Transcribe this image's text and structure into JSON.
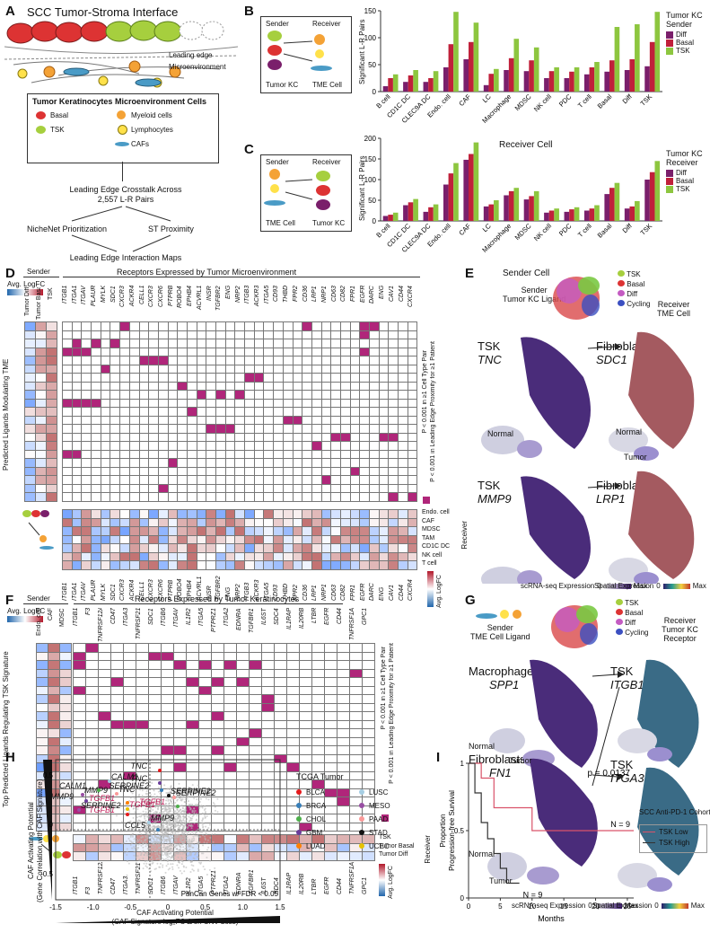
{
  "panelA": {
    "letter": "A",
    "title": "SCC Tumor-Stroma Interface",
    "leading_edge": "Leading edge",
    "microenvironment": "Microenvironment",
    "tk_header": "Tumor Keratinocytes",
    "me_header": "Microenvironment Cells",
    "basal": "Basal",
    "tsk": "TSK",
    "myeloid": "Myeloid cells",
    "lymph": "Lymphocytes",
    "cafs": "CAFs",
    "crosstalk1": "Leading Edge Crosstalk Across",
    "crosstalk2": "2,557 L-R Pairs",
    "nichenet": "NicheNet Prioritization",
    "st": "ST Proximity",
    "maps": "Leading Edge Interaction Maps"
  },
  "panelB": {
    "letter": "B",
    "sender": "Sender",
    "receiver": "Receiver",
    "sender_cell": "Tumor KC",
    "receiver_cell": "TME Cell",
    "legend_title1": "Tumor KC",
    "legend_title2": "Sender",
    "x_title": "Receiver Cell",
    "y_title": "Significant L-R Pairs"
  },
  "panelC": {
    "letter": "C",
    "sender": "Sender",
    "receiver": "Receiver",
    "sender_cell": "TME Cell",
    "receiver_cell": "Tumor KC",
    "legend_title1": "Tumor KC",
    "legend_title2": "Receiver",
    "x_title": "Sender Cell",
    "y_title": "Significant L-R Pairs"
  },
  "chart_data": [
    {
      "type": "bar",
      "categories": [
        "B cell",
        "CD1C DC",
        "CLEC9A DC",
        "Endo. cell",
        "CAF",
        "LC",
        "Macrophage",
        "MDSC",
        "NK cell",
        "PDC",
        "T cell",
        "Basal",
        "Diff",
        "TSK"
      ],
      "series": [
        {
          "name": "Diff",
          "values": [
            10,
            18,
            18,
            45,
            60,
            12,
            40,
            38,
            25,
            25,
            32,
            37,
            40,
            47
          ]
        },
        {
          "name": "Basal",
          "values": [
            25,
            30,
            25,
            88,
            92,
            33,
            62,
            58,
            38,
            37,
            45,
            58,
            60,
            92
          ]
        },
        {
          "name": "TSK",
          "values": [
            32,
            40,
            38,
            148,
            128,
            42,
            98,
            82,
            45,
            45,
            55,
            120,
            125,
            148
          ]
        }
      ],
      "ylim": [
        0,
        150
      ],
      "yticks": [
        0,
        50,
        100,
        150
      ],
      "colors": [
        "#7a1f6b",
        "#c0203a",
        "#8dc63f"
      ]
    },
    {
      "type": "bar",
      "categories": [
        "B cell",
        "CD1C DC",
        "CLEC9A DC",
        "Endo. cell",
        "CAF",
        "LC",
        "Macrophage",
        "MDSC",
        "NK cell",
        "PDC",
        "T cell",
        "Basal",
        "Diff",
        "TSK"
      ],
      "series": [
        {
          "name": "Diff",
          "values": [
            12,
            38,
            22,
            88,
            148,
            35,
            62,
            52,
            20,
            22,
            25,
            65,
            30,
            100
          ]
        },
        {
          "name": "Basal",
          "values": [
            15,
            45,
            33,
            115,
            162,
            40,
            72,
            60,
            25,
            28,
            30,
            80,
            35,
            118
          ]
        },
        {
          "name": "TSK",
          "values": [
            20,
            53,
            40,
            140,
            190,
            50,
            80,
            72,
            30,
            33,
            38,
            92,
            48,
            145
          ]
        }
      ],
      "ylim": [
        0,
        200
      ],
      "yticks": [
        0,
        50,
        100,
        150,
        200
      ],
      "colors": [
        "#7a1f6b",
        "#c0203a",
        "#8dc63f"
      ]
    },
    {
      "type": "line",
      "title": "",
      "xlabel": "Months",
      "ylabel": "Proportion Progression-free Survival",
      "x_ticks": [
        0,
        5,
        10,
        15,
        20,
        25
      ],
      "y_ticks": [
        0,
        0.5,
        1
      ],
      "series": [
        {
          "name": "TSK Low",
          "color": "#d9536a",
          "x": [
            0,
            2,
            2,
            4,
            4,
            10,
            10,
            26
          ],
          "y": [
            1,
            1,
            0.89,
            0.89,
            0.67,
            0.67,
            0.5,
            0.5
          ]
        },
        {
          "name": "TSK High",
          "color": "#333",
          "x": [
            0,
            1,
            1,
            2,
            2,
            3,
            3,
            4,
            4,
            5,
            5,
            6,
            6,
            8
          ],
          "y": [
            1,
            1,
            0.78,
            0.78,
            0.56,
            0.56,
            0.44,
            0.44,
            0.33,
            0.33,
            0.22,
            0.22,
            0.11,
            0.11
          ]
        }
      ],
      "annotations": [
        "p = 0.0137",
        "N = 9",
        "N = 9"
      ]
    }
  ],
  "panelD": {
    "letter": "D",
    "sender": "Sender",
    "recv_title": "Receptors Expressed by Tumor Microenvironment",
    "legend": "Avg. LogFC",
    "side_label": "Predicted Ligands Modulating TME",
    "cols": [
      "Tumor Diff",
      "Tumor Basal",
      "TSK"
    ],
    "ligands": [
      "MMP9",
      "SERPINE2",
      "ANXA1",
      "TNC",
      "CCL5",
      "CALM1",
      "PGF",
      "EFNB1",
      "VEGFA",
      "COL1A1",
      "EFNB2",
      "HMGB1",
      "TGFB1",
      "MDK",
      "CXCL16",
      "COL18A1",
      "CXCL11",
      "TIMP1",
      "SAA1",
      "CXCL10",
      "CCL2"
    ],
    "receptors": [
      "ITGB1",
      "ITGA1",
      "ITGAV",
      "PLAUR",
      "MYLK",
      "SDC1",
      "CXCR3",
      "ACKR4",
      "CELL1",
      "CXCR3",
      "CXCR6",
      "PTPRB",
      "ROBO4",
      "EPHB4",
      "ACVRL1",
      "INSR",
      "TGFBR2",
      "ENG",
      "NRP2",
      "ITGB3",
      "ACKR3",
      "ITGA5",
      "CD93",
      "THBD",
      "FPR2",
      "CD36",
      "LRP1",
      "NRP1",
      "CD63",
      "CD82",
      "FPR1",
      "EGFR",
      "DARC",
      "ENG",
      "CAV1",
      "CD44",
      "CXCR4"
    ],
    "receivers": [
      "Endo. cell",
      "CAF",
      "MDSC",
      "TAM",
      "CD1C DC",
      "NK cell",
      "T cell"
    ],
    "receiver_label": "Receiver",
    "note1": "P < 0.001 in ≥1 Cell Type Pair",
    "note2": "P < 0.001 in Leading Edge Proximity for ≥1 Patient"
  },
  "panelE": {
    "letter": "E",
    "sender": "Sender",
    "sender2": "Tumor KC Ligand",
    "receiver": "Receiver",
    "receiver2": "TME Cell",
    "leg": [
      "TSK",
      "Basal",
      "Diff",
      "Cycling"
    ],
    "r1l_cell": "TSK",
    "r1l_gene": "TNC",
    "r1r_cell": "Fibroblasts",
    "r1r_gene": "SDC1",
    "r2l_cell": "TSK",
    "r2l_gene": "MMP9",
    "r2r_cell": "Fibroblasts",
    "r2r_gene": "LRP1",
    "normal": "Normal",
    "tumor": "Tumor",
    "sc": "scRNA-seq Expression",
    "sp": "Spatial Expression",
    "z": "0",
    "max": "Max"
  },
  "panelF": {
    "letter": "F",
    "sender": "Sender",
    "recv_title": "Receptors Expressed by Tumor Keratinocytes",
    "side_label": "Top Predicted Ligands Regulating TSK Signature",
    "cols": [
      "Endo. cell",
      "CAF",
      "MDSC"
    ],
    "ligands": [
      "TFPI",
      "CTGF",
      "FN1",
      "IL24",
      "TNC",
      "VEGFA",
      "IL1A",
      "OSM",
      "IL6",
      "THBS1",
      "EDN1",
      "HAS2",
      "TGFB3",
      "HMGB1",
      "TGFB1",
      "ADAM17",
      "TNFSF12",
      "AREG",
      "TNF",
      "SPP1",
      "IL1RN",
      "IL1B"
    ],
    "receptors": [
      "ITGB1",
      "F3",
      "TNFRSF12A",
      "CD47",
      "ITGA3",
      "TNFRSF21",
      "SDC1",
      "ITGB6",
      "ITGAV",
      "IL1R2",
      "ITGA5",
      "PTPRZ1",
      "ITGA2",
      "EDNRA",
      "TGFBR1",
      "IL6ST",
      "SDC4",
      "IL1RAP",
      "IL20RB",
      "LTBR",
      "EGFR",
      "CD44",
      "TNFRSF1A",
      "GPC1"
    ],
    "receivers": [
      "TSK",
      "Tumor Basal",
      "Tumor Diff"
    ],
    "receiver_label": "Receiver",
    "legend": "Avg. LogFC",
    "note1": "P < 0.001 in ≥1 Cell Type Pair",
    "note2": "P < 0.001 in Leading Edge Proximity for ≥1 Patient"
  },
  "panelG": {
    "letter": "G",
    "sender": "Sender",
    "sender2": "TME Cell Ligand",
    "receiver": "Receiver",
    "receiver2": "Tumor KC Receptor",
    "leg": [
      "TSK",
      "Basal",
      "Diff",
      "Cycling"
    ],
    "r1l_cell": "Macrophages",
    "r1l_gene": "SPP1",
    "r1r_cell": "TSK",
    "r1r_gene": "ITGB1",
    "r2l_cell": "Fibroblasts",
    "r2l_gene": "FN1",
    "r2r_cell": "TSK",
    "r2r_gene": "ITGA3",
    "normal": "Normal",
    "tumor": "Tumor",
    "sc": "scRNA-seq Expression",
    "sp": "Spatial Expression",
    "z": "0",
    "max": "Max"
  },
  "panelH": {
    "letter": "H",
    "ylab1": "CAF Activating Potential",
    "ylab2": "(Gene Correlation with CAF Signature)",
    "xlab1": "CAF Activating Potential",
    "xlab2": "(CAF Signature log₂FC Δ on CNV Loss)",
    "note": "PanCan Genes w/ FDR < 0.05",
    "xticks": [
      "-1.5",
      "-1.0",
      "-0.5",
      "0",
      "0.5",
      "1.0",
      "1.5"
    ],
    "yticks": [
      "0.5",
      "0",
      "-0.5"
    ],
    "tcga_title": "TCGA Tumor",
    "tcga": [
      {
        "name": "BLCA",
        "color": "#e41a1c"
      },
      {
        "name": "LUSC",
        "color": "#a6cee3"
      },
      {
        "name": "BRCA",
        "color": "#377eb8"
      },
      {
        "name": "MESO",
        "color": "#984ea3"
      },
      {
        "name": "CHOL",
        "color": "#4daf4a"
      },
      {
        "name": "PAAD",
        "color": "#fb9a99"
      },
      {
        "name": "GBM",
        "color": "#6a3d9a"
      },
      {
        "name": "STAD",
        "color": "#111111"
      },
      {
        "name": "LUAD",
        "color": "#ff7f00"
      },
      {
        "name": "UCEC",
        "color": "#e6c200"
      }
    ],
    "genes": [
      "TNC",
      "CALM1",
      "SERPINE2",
      "MMP9",
      "CALM1",
      "TNC",
      "TNC",
      "SERPINE2",
      "TGFB1",
      "TGFB1",
      "TGFB1",
      "MMP9",
      "CCL5",
      "SERPINE2",
      "TGFB1",
      "SERPINE2",
      "MMP9"
    ]
  },
  "panelI": {
    "letter": "I",
    "cohort": "SCC Anti-PD-1 Cohort",
    "low": "TSK Low",
    "high": "TSK High"
  }
}
